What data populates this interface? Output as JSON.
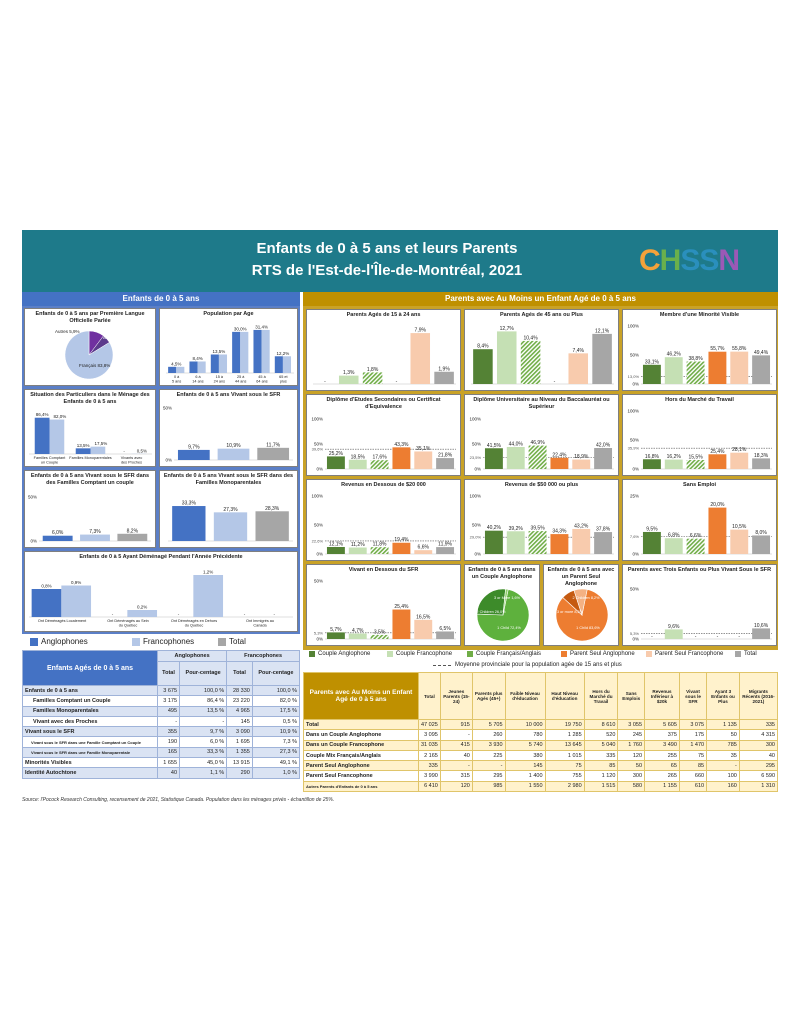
{
  "header": {
    "title1": "Enfants de 0 à 5 ans et leurs Parents",
    "title2": "RTS de l'Est-de-l'Île-de-Montréal, 2021",
    "logo": "CHSSN"
  },
  "left_section_title": "Enfants de 0 à 5 ans",
  "right_section_title": "Parents avec Au Moins un Enfant Agé de 0 à 5 ans",
  "colors": {
    "anglo": "#4472c4",
    "franco": "#b4c7e7",
    "total": "#a6a6a6",
    "couple_anglo": "#548235",
    "couple_franco": "#c5e0b4",
    "couple_mix": "#70ad47",
    "seul_anglo": "#ed7d31",
    "seul_franco": "#f8cbad",
    "total_r": "#a6a6a6"
  },
  "legend_left": [
    "Anglophones",
    "Francophones",
    "Total"
  ],
  "legend_right": [
    "Couple Anglophone",
    "Couple Francophone",
    "Couple Français/Anglais",
    "Parent Seul Anglophone",
    "Parent Seul Francophone",
    "Total"
  ],
  "legend_right_note": "Moyenne provinciale pour la population agée de 15 ans et plus",
  "chart_data": [
    {
      "id": "langue",
      "type": "pie",
      "title": "Enfants de 0 à 5 ans par Première Langue Officielle Parlée",
      "categories": [
        "Anglais",
        "Autres",
        "Français"
      ],
      "labels": [
        "Anglais 10,3%",
        "Autres 5,9%",
        "Français 83,8%"
      ],
      "values": [
        10.3,
        5.9,
        83.8
      ]
    },
    {
      "id": "age",
      "type": "bar",
      "title": "Population par Age",
      "categories": [
        "0 à 5 ans",
        "6 à 14 ans",
        "15 à 24 ans",
        "25 à 44 ans",
        "45 à 64 ans",
        "65 et plus"
      ],
      "series": [
        {
          "name": "Anglophones",
          "values": [
            4.5,
            8.4,
            13.5,
            30.0,
            31.4,
            12.2
          ]
        },
        {
          "name": "Francophones",
          "values": [
            4.5,
            8.4,
            13.5,
            30.0,
            31.4,
            12.2
          ]
        }
      ],
      "labels": [
        "4,5%",
        "8,4%",
        "13,5%",
        "30,0%",
        "31,4%",
        "12,2%"
      ],
      "ylim": [
        0,
        35
      ]
    },
    {
      "id": "situation",
      "type": "bar",
      "title": "Situation des Particuliers dans le Ménage des Enfants de 0 à 5 ans",
      "categories": [
        "Familles Comptant un Couple",
        "Familles Monoparentales",
        "Vivants avec des Proches"
      ],
      "series": [
        {
          "name": "Anglophones",
          "values": [
            86.4,
            13.5,
            0
          ]
        },
        {
          "name": "Francophones",
          "values": [
            82.0,
            17.5,
            0.5
          ]
        }
      ],
      "labels_a": [
        "86,4%",
        "13,5%",
        "-"
      ],
      "labels_f": [
        "82,0%",
        "17,5%",
        "0,5%"
      ],
      "ylim": [
        0,
        100
      ]
    },
    {
      "id": "sfr",
      "type": "bar",
      "title": "Enfants de 0 à 5 ans Vivant sous le SFR",
      "categories": [
        "Anglophones",
        "Francophones",
        "Total"
      ],
      "values": [
        9.7,
        10.9,
        11.7
      ],
      "labels": [
        "9,7%",
        "10,9%",
        "11,7%"
      ],
      "yticks": [
        "0%",
        "50%"
      ],
      "ylim": [
        0,
        50
      ]
    },
    {
      "id": "sfr_couple",
      "type": "bar",
      "title": "Enfants de 0 à 5 ans Vivant sous le SFR dans des Familles Comptant un couple",
      "categories": [
        "Anglophones",
        "Francophones",
        "Total"
      ],
      "values": [
        6.0,
        7.3,
        8.2
      ],
      "labels": [
        "6,0%",
        "7,3%",
        "8,2%"
      ],
      "yticks": [
        "0%",
        "50%"
      ],
      "ylim": [
        0,
        50
      ]
    },
    {
      "id": "sfr_mono",
      "type": "bar",
      "title": "Enfants de 0 à 5 ans Vivant sous le SFR dans des Familles Monoparentales",
      "categories": [
        "Anglophones",
        "Francophones",
        "Total"
      ],
      "values": [
        33.3,
        27.3,
        28.3
      ],
      "labels": [
        "33,3%",
        "27,3%",
        "28,3%"
      ],
      "ylim": [
        0,
        40
      ]
    },
    {
      "id": "demenage",
      "type": "bar",
      "title": "Enfants de 0 à 5 Ayant Déménagé Pendant l'Année Précédente",
      "categories": [
        "Ont Déménagés Localement",
        "Ont Déménagés au Sein du Québec",
        "Ont Déménagés en Dehors du Québec",
        "Ont Immigrés au Canada"
      ],
      "series": [
        {
          "name": "Anglophones",
          "values": [
            0.8,
            0,
            0,
            0
          ]
        },
        {
          "name": "Francophones",
          "values": [
            0.9,
            0.2,
            1.2,
            0
          ]
        }
      ],
      "labels_a": [
        "0,8%",
        "-",
        "-",
        "-"
      ],
      "labels_f": [
        "0,9%",
        "0,2%",
        "1,2%",
        "-"
      ],
      "ylim": [
        0,
        1.4
      ]
    },
    {
      "id": "p15_24",
      "type": "bar",
      "title": "Parents Agés de 15 à 24 ans",
      "values": [
        0,
        1.3,
        1.8,
        0,
        7.9,
        1.9
      ],
      "labels": [
        "-",
        "1,3%",
        "1,8%",
        "-",
        "7,9%",
        "1,9%"
      ],
      "ylim": [
        0,
        9
      ]
    },
    {
      "id": "p45",
      "type": "bar",
      "title": "Parents Agés de 45 ans ou Plus",
      "values": [
        8.4,
        12.7,
        10.4,
        0,
        7.4,
        12.1
      ],
      "labels": [
        "8,4%",
        "12,7%",
        "10,4%",
        "-",
        "7,4%",
        "12,1%"
      ],
      "ylim": [
        0,
        14
      ]
    },
    {
      "id": "minorite",
      "type": "bar",
      "title": "Membre d'une Minorité Visible",
      "values": [
        33.1,
        46.2,
        38.8,
        55.7,
        55.8,
        49.4
      ],
      "labels": [
        "33,1%",
        "46,2%",
        "38,8%",
        "55,7%",
        "55,8%",
        "49,4%"
      ],
      "yticks": [
        "0%",
        "50%",
        "100%"
      ],
      "ylim": [
        0,
        100
      ],
      "provincial": "13,0%",
      "provincial_value": 13.0
    },
    {
      "id": "diplome_sec",
      "type": "bar",
      "title": "Diplôme d'Etudes Secondaires ou Certificat d'Equivalence",
      "values": [
        25.2,
        18.5,
        17.6,
        43.3,
        35.1,
        21.8
      ],
      "labels": [
        "25,2%",
        "18,5%",
        "17,6%",
        "43,3%",
        "35,1%",
        "21,8%"
      ],
      "yticks": [
        "0%",
        "50%",
        "100%"
      ],
      "ylim": [
        0,
        100
      ],
      "provincial": "39,6%",
      "provincial_value": 39.6
    },
    {
      "id": "diplome_univ",
      "type": "bar",
      "title": "Diplôme Universitaire au Niveau du Baccalauréat ou Supérieur",
      "values": [
        41.5,
        44.0,
        46.9,
        22.4,
        18.9,
        42.0
      ],
      "labels": [
        "41,5%",
        "44,0%",
        "46,9%",
        "22,4%",
        "18,9%",
        "42,0%"
      ],
      "yticks": [
        "0%",
        "50%",
        "100%"
      ],
      "ylim": [
        0,
        100
      ],
      "provincial": "23,5%",
      "provincial_value": 23.5
    },
    {
      "id": "hors_marche",
      "type": "bar",
      "title": "Hors du Marché du Travail",
      "values": [
        16.8,
        16.2,
        15.5,
        25.4,
        28.1,
        18.3
      ],
      "labels": [
        "16,8%",
        "16,2%",
        "15,5%",
        "25,4%",
        "28,1%",
        "18,3%"
      ],
      "yticks": [
        "0%",
        "50%",
        "100%"
      ],
      "ylim": [
        0,
        100
      ],
      "provincial": "35,9%",
      "provincial_value": 35.9
    },
    {
      "id": "rev20",
      "type": "bar",
      "title": "Revenus en Dessous de $20 000",
      "values": [
        12.1,
        11.2,
        11.8,
        19.4,
        6.6,
        11.9
      ],
      "labels": [
        "12,1%",
        "11,2%",
        "11,8%",
        "19,4%",
        "6,6%",
        "11,9%"
      ],
      "yticks": [
        "0%",
        "50%",
        "100%"
      ],
      "ylim": [
        0,
        100
      ],
      "provincial": "22,6%",
      "provincial_value": 22.6
    },
    {
      "id": "rev50",
      "type": "bar",
      "title": "Revenus de $50 000 ou plus",
      "values": [
        40.2,
        39.2,
        39.5,
        34.3,
        43.2,
        37.8
      ],
      "labels": [
        "40,2%",
        "39,2%",
        "39,5%",
        "34,3%",
        "43,2%",
        "37,8%"
      ],
      "yticks": [
        "0%",
        "50%",
        "100%"
      ],
      "ylim": [
        0,
        100
      ],
      "provincial": "29,0%",
      "provincial_value": 29.0
    },
    {
      "id": "sans_emploi",
      "type": "bar",
      "title": "Sans Emploi",
      "values": [
        9.5,
        6.8,
        6.6,
        20.0,
        10.5,
        8.0
      ],
      "labels": [
        "9,5%",
        "6,8%",
        "6,6%",
        "20,0%",
        "10,5%",
        "8,0%"
      ],
      "yticks": [
        "0%",
        "25%"
      ],
      "ylim": [
        0,
        25
      ],
      "provincial": "7,6%",
      "provincial_value": 7.6
    },
    {
      "id": "sous_sfr",
      "type": "bar",
      "title": "Vivant en Dessous du SFR",
      "values": [
        5.7,
        4.7,
        3.5,
        25.4,
        16.5,
        6.5
      ],
      "labels": [
        "5,7%",
        "4,7%",
        "3,5%",
        "25,4%",
        "16,5%",
        "6,5%"
      ],
      "yticks": [
        "0%",
        "50%"
      ],
      "ylim": [
        0,
        50
      ],
      "provincial": "5,3%",
      "provincial_value": 5.3
    },
    {
      "id": "pie_couple",
      "type": "pie",
      "title": "Enfants de 0 à 5 ans dans un Couple Anglophone",
      "categories": [
        "1 Child",
        "2 Children",
        "3 or More"
      ],
      "labels": [
        "1 Child 72,4%",
        "2 Children 26,0%",
        "3 or More 1,6%"
      ],
      "values": [
        72.4,
        26.0,
        1.6
      ]
    },
    {
      "id": "pie_seul",
      "type": "pie",
      "title": "Enfants de 0 à 5 ans avec un Parent Seul Anglophone",
      "categories": [
        "1 Child",
        "2 Children",
        "3 or More"
      ],
      "labels": [
        "1 Child 83,6%",
        "3 or more 8,2%",
        "2 Children 8,2%"
      ],
      "values": [
        83.6,
        8.2,
        8.2
      ]
    },
    {
      "id": "trois",
      "type": "bar",
      "title": "Parents avec Trois Enfants ou Plus Vivant Sous le SFR",
      "values": [
        0,
        9.6,
        0,
        0,
        0,
        10.6
      ],
      "labels": [
        "-",
        "9,6%",
        "-",
        "-",
        "-",
        "10,6%"
      ],
      "yticks": [
        "0%",
        "50%"
      ],
      "ylim": [
        0,
        50
      ],
      "provincial": "5,3%",
      "provincial_value": 5.3
    }
  ],
  "table_left": {
    "title": "Enfants Agés de 0 à 5 ans",
    "group_headers": [
      "Anglophones",
      "Francophones"
    ],
    "sub_headers": [
      "Total",
      "Pour-centage",
      "Total",
      "Pour-centage"
    ],
    "rows": [
      [
        "Enfants de 0 à 5 ans",
        "3 675",
        "100,0 %",
        "28 330",
        "100,0 %"
      ],
      [
        "Familles Comptant un Couple",
        "3 175",
        "86,4 %",
        "23 220",
        "82,0 %"
      ],
      [
        "Familles Monoparentales",
        "495",
        "13,5 %",
        "4 965",
        "17,5 %"
      ],
      [
        "Vivant avec des Proches",
        "-",
        "-",
        "145",
        "0,5 %"
      ],
      [
        "Vivant sous le SFR",
        "355",
        "9,7 %",
        "3 090",
        "10,9 %"
      ],
      [
        "Vivant sous le SFR dans une Famille Comptant un Couple",
        "190",
        "6,0 %",
        "1 695",
        "7,3 %"
      ],
      [
        "Vivant sous le SFR dans une Famille Monoparentale",
        "165",
        "33,3 %",
        "1 355",
        "27,3 %"
      ],
      [
        "Minorités Visibles",
        "1 655",
        "45,0 %",
        "13 915",
        "49,1 %"
      ],
      [
        "Identité Autochtone",
        "40",
        "1,1 %",
        "290",
        "1,0 %"
      ]
    ]
  },
  "table_right": {
    "title": "Parents avec Au Moins un Enfant Agé de 0 à 5 ans",
    "headers": [
      "Total",
      "Jeunes Parents (15-24)",
      "Parents plus Agés (45+)",
      "Faible Niveau d'éducation",
      "Haut Niveau d'éducation",
      "Hors du Marché du Travail",
      "Sans Emplois",
      "Revenus Inférieur à $20k",
      "Vivant sous le SFR",
      "Ayant 3 Enfants ou Plus",
      "Migrants Récents (2016-2021)"
    ],
    "rows": [
      [
        "Total",
        "47 025",
        "915",
        "5 705",
        "10 000",
        "19 750",
        "8 610",
        "3 055",
        "5 605",
        "3 075",
        "1 135",
        "335"
      ],
      [
        "Dans un Couple Anglophone",
        "3 095",
        "-",
        "260",
        "780",
        "1 285",
        "520",
        "245",
        "375",
        "175",
        "50",
        "4 315"
      ],
      [
        "Dans un Couple Francophone",
        "31 035",
        "415",
        "3 930",
        "5 740",
        "13 645",
        "5 040",
        "1 760",
        "3 490",
        "1 470",
        "785",
        "300"
      ],
      [
        "Couple Mix Français/Anglais",
        "2 165",
        "40",
        "225",
        "380",
        "1 015",
        "335",
        "120",
        "255",
        "75",
        "35",
        "40"
      ],
      [
        "Parent Seul Anglophone",
        "335",
        "-",
        "-",
        "145",
        "75",
        "85",
        "50",
        "65",
        "85",
        "-",
        "295"
      ],
      [
        "Parent Seul Francophone",
        "3 990",
        "315",
        "295",
        "1 400",
        "755",
        "1 120",
        "300",
        "265",
        "660",
        "100",
        "6 590"
      ],
      [
        "Autres Parents d'Enfants de 0 à 5 ans",
        "6 410",
        "120",
        "985",
        "1 550",
        "2 980",
        "1 515",
        "580",
        "1 155",
        "610",
        "160",
        "1 310"
      ]
    ]
  },
  "source": "Source: l'Pocock Research Consulting, recensement de 2021, Statistique Canada. Population dans les ménages privés - échantillon de 25%."
}
